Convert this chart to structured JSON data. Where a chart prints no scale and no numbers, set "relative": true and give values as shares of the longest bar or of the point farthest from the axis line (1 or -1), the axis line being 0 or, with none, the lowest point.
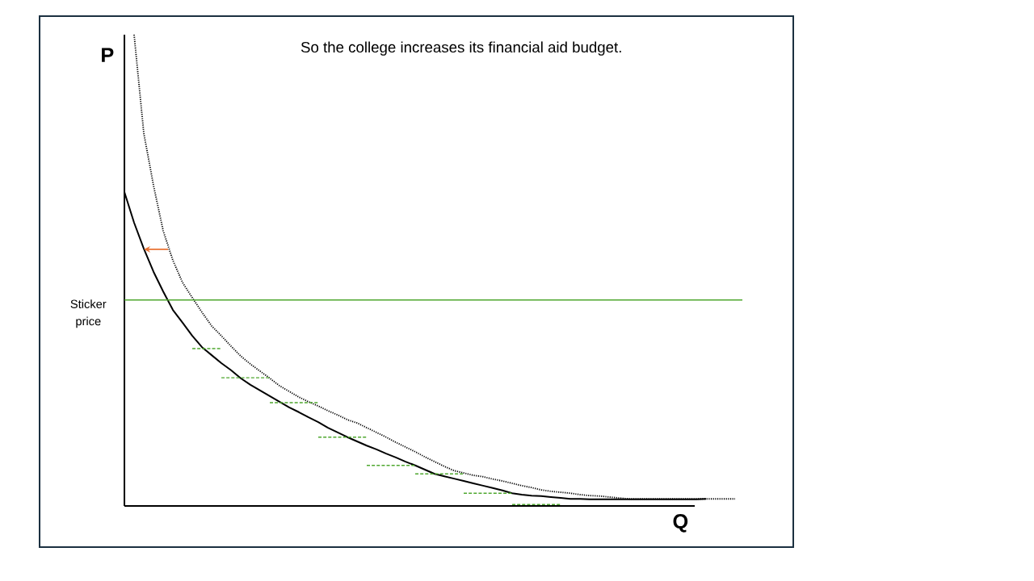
{
  "chart_data": {
    "type": "line",
    "relative": true,
    "title": "So the college increases its financial aid budget.",
    "xlabel": "Q",
    "ylabel": "P",
    "categories": [
      null,
      null,
      null,
      null,
      null,
      null,
      null,
      null,
      null,
      null,
      null,
      null,
      null,
      null,
      null,
      null,
      null,
      null,
      null,
      null,
      null,
      null,
      null,
      null,
      null,
      null,
      null,
      null,
      null,
      null,
      null,
      null,
      null,
      null,
      null,
      null,
      null,
      null,
      null,
      null,
      null,
      null,
      null,
      null,
      null,
      null,
      null,
      null,
      null,
      null,
      null,
      null,
      null,
      null,
      null,
      null,
      null,
      null,
      null,
      null,
      null,
      null,
      null,
      null
    ],
    "series": [
      {
        "color": "#000000",
        "line_style": "solid",
        "values": [
          0.666,
          0.601,
          0.546,
          0.497,
          0.455,
          0.416,
          0.389,
          0.361,
          0.337,
          0.32,
          0.303,
          0.288,
          0.271,
          0.257,
          0.245,
          0.233,
          0.221,
          0.209,
          0.199,
          0.188,
          0.178,
          0.166,
          0.156,
          0.146,
          0.137,
          0.128,
          0.12,
          0.111,
          0.103,
          0.094,
          0.086,
          0.077,
          0.068,
          0.063,
          0.058,
          0.053,
          0.048,
          0.043,
          0.038,
          0.033,
          0.027,
          0.024,
          0.022,
          0.021,
          0.019,
          0.017,
          0.015,
          0.015,
          0.014,
          0.014,
          0.014,
          0.014,
          0.014,
          0.014,
          0.014,
          0.014,
          0.014,
          0.014,
          0.014,
          0.014,
          0.015,
          null,
          null,
          null
        ]
      },
      {
        "color": "#000000",
        "line_style": "dotted",
        "values": [
          null,
          1,
          0.791,
          0.68,
          0.584,
          0.521,
          0.474,
          0.442,
          0.411,
          0.382,
          0.361,
          0.339,
          0.318,
          0.301,
          0.286,
          0.271,
          0.255,
          0.243,
          0.231,
          0.221,
          0.212,
          0.202,
          0.193,
          0.183,
          0.176,
          0.166,
          0.156,
          0.146,
          0.135,
          0.125,
          0.115,
          0.104,
          0.094,
          0.084,
          0.075,
          0.07,
          0.065,
          0.062,
          0.057,
          0.053,
          0.048,
          0.043,
          0.039,
          0.034,
          0.031,
          0.029,
          0.027,
          0.024,
          0.022,
          0.021,
          0.019,
          0.017,
          0.015,
          0.015,
          0.015,
          0.015,
          0.015,
          0.015,
          0.015,
          0.015,
          0.015,
          0.015,
          0.015,
          0.015
        ]
      },
      {
        "color": "#4ea72e",
        "line_style": "dashed",
        "values": [
          null,
          null,
          null,
          null,
          null,
          null,
          null,
          0.334,
          0.334,
          0.334,
          0.334,
          null,
          null,
          null,
          null,
          null,
          null,
          null,
          null,
          null,
          null,
          null,
          null,
          null,
          null,
          null,
          null,
          null,
          null,
          null,
          null,
          null,
          null,
          null,
          null,
          null,
          null,
          null,
          null,
          null,
          null,
          null,
          null,
          null,
          null,
          null,
          null,
          null,
          null,
          null,
          null,
          null,
          null,
          null,
          null,
          null,
          null,
          null,
          null,
          null,
          null,
          null,
          null,
          null
        ]
      },
      {
        "color": "#4ea72e",
        "line_style": "dashed",
        "values": [
          null,
          null,
          null,
          null,
          null,
          null,
          null,
          null,
          null,
          null,
          0.272,
          0.272,
          0.272,
          0.272,
          0.272,
          0.272,
          null,
          null,
          null,
          null,
          null,
          null,
          null,
          null,
          null,
          null,
          null,
          null,
          null,
          null,
          null,
          null,
          null,
          null,
          null,
          null,
          null,
          null,
          null,
          null,
          null,
          null,
          null,
          null,
          null,
          null,
          null,
          null,
          null,
          null,
          null,
          null,
          null,
          null,
          null,
          null,
          null,
          null,
          null,
          null,
          null,
          null,
          null,
          null
        ]
      },
      {
        "color": "#4ea72e",
        "line_style": "dashed",
        "values": [
          null,
          null,
          null,
          null,
          null,
          null,
          null,
          null,
          null,
          null,
          null,
          null,
          null,
          null,
          null,
          0.219,
          0.219,
          0.219,
          0.219,
          0.219,
          0.219,
          null,
          null,
          null,
          null,
          null,
          null,
          null,
          null,
          null,
          null,
          null,
          null,
          null,
          null,
          null,
          null,
          null,
          null,
          null,
          null,
          null,
          null,
          null,
          null,
          null,
          null,
          null,
          null,
          null,
          null,
          null,
          null,
          null,
          null,
          null,
          null,
          null,
          null,
          null,
          null,
          null,
          null,
          null
        ]
      },
      {
        "color": "#4ea72e",
        "line_style": "dashed",
        "values": [
          null,
          null,
          null,
          null,
          null,
          null,
          null,
          null,
          null,
          null,
          null,
          null,
          null,
          null,
          null,
          null,
          null,
          null,
          null,
          null,
          0.146,
          0.146,
          0.146,
          0.146,
          0.146,
          0.146,
          null,
          null,
          null,
          null,
          null,
          null,
          null,
          null,
          null,
          null,
          null,
          null,
          null,
          null,
          null,
          null,
          null,
          null,
          null,
          null,
          null,
          null,
          null,
          null,
          null,
          null,
          null,
          null,
          null,
          null,
          null,
          null,
          null,
          null,
          null,
          null,
          null,
          null
        ]
      },
      {
        "color": "#4ea72e",
        "line_style": "dashed",
        "values": [
          null,
          null,
          null,
          null,
          null,
          null,
          null,
          null,
          null,
          null,
          null,
          null,
          null,
          null,
          null,
          null,
          null,
          null,
          null,
          null,
          null,
          null,
          null,
          null,
          null,
          0.086,
          0.086,
          0.086,
          0.086,
          0.086,
          0.086,
          null,
          null,
          null,
          null,
          null,
          null,
          null,
          null,
          null,
          null,
          null,
          null,
          null,
          null,
          null,
          null,
          null,
          null,
          null,
          null,
          null,
          null,
          null,
          null,
          null,
          null,
          null,
          null,
          null,
          null,
          null,
          null,
          null
        ]
      },
      {
        "color": "#4ea72e",
        "line_style": "dashed",
        "values": [
          null,
          null,
          null,
          null,
          null,
          null,
          null,
          null,
          null,
          null,
          null,
          null,
          null,
          null,
          null,
          null,
          null,
          null,
          null,
          null,
          null,
          null,
          null,
          null,
          null,
          null,
          null,
          null,
          null,
          null,
          0.068,
          0.068,
          0.068,
          0.068,
          0.068,
          0.068,
          null,
          null,
          null,
          null,
          null,
          null,
          null,
          null,
          null,
          null,
          null,
          null,
          null,
          null,
          null,
          null,
          null,
          null,
          null,
          null,
          null,
          null,
          null,
          null,
          null,
          null,
          null,
          null
        ]
      },
      {
        "color": "#4ea72e",
        "line_style": "dashed",
        "values": [
          null,
          null,
          null,
          null,
          null,
          null,
          null,
          null,
          null,
          null,
          null,
          null,
          null,
          null,
          null,
          null,
          null,
          null,
          null,
          null,
          null,
          null,
          null,
          null,
          null,
          null,
          null,
          null,
          null,
          null,
          null,
          null,
          null,
          null,
          null,
          0.027,
          0.027,
          0.027,
          0.027,
          0.027,
          0.027,
          null,
          null,
          null,
          null,
          null,
          null,
          null,
          null,
          null,
          null,
          null,
          null,
          null,
          null,
          null,
          null,
          null,
          null,
          null,
          null,
          null,
          null,
          null
        ]
      },
      {
        "color": "#4ea72e",
        "line_style": "dashed",
        "values": [
          null,
          null,
          null,
          null,
          null,
          null,
          null,
          null,
          null,
          null,
          null,
          null,
          null,
          null,
          null,
          null,
          null,
          null,
          null,
          null,
          null,
          null,
          null,
          null,
          null,
          null,
          null,
          null,
          null,
          null,
          null,
          null,
          null,
          null,
          null,
          null,
          null,
          null,
          null,
          null,
          0.003,
          0.003,
          0.003,
          0.003,
          0.003,
          0.003,
          null,
          null,
          null,
          null,
          null,
          null,
          null,
          null,
          null,
          null,
          null,
          null,
          null,
          null,
          null,
          null,
          null,
          null
        ]
      }
    ],
    "ref_lines": [
      {
        "axis": "y",
        "value": 0.437,
        "label": "Sticker price",
        "color": "#4ea72e"
      }
    ]
  }
}
